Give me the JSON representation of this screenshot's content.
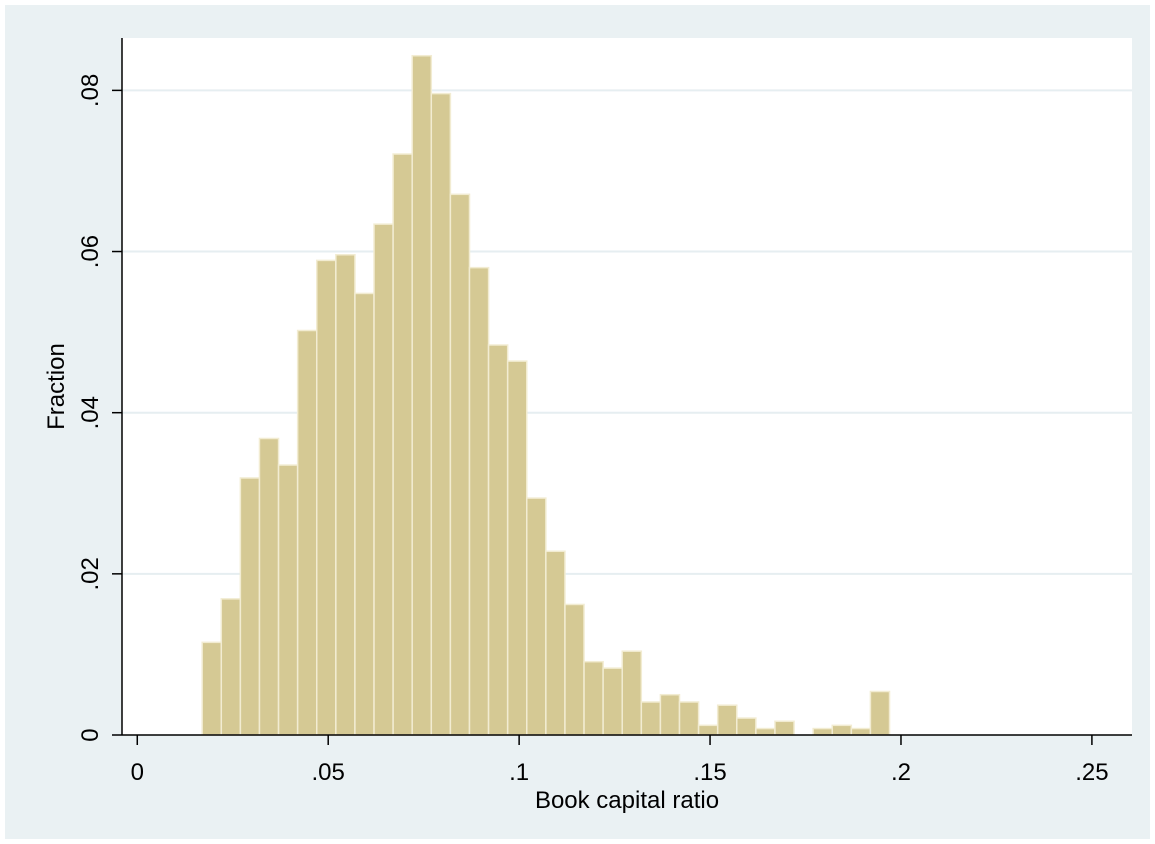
{
  "chart_data": {
    "type": "bar",
    "title": "",
    "xlabel": "Book capital ratio",
    "ylabel": "Fraction",
    "bin_width": 0.005,
    "bin_start": 0.017,
    "values": [
      0.0115,
      0.0169,
      0.0319,
      0.0368,
      0.0335,
      0.0502,
      0.0589,
      0.0596,
      0.0548,
      0.0634,
      0.0721,
      0.0843,
      0.0796,
      0.0671,
      0.058,
      0.0484,
      0.0464,
      0.0294,
      0.0228,
      0.0162,
      0.0091,
      0.0083,
      0.0104,
      0.0041,
      0.005,
      0.0041,
      0.0012,
      0.0037,
      0.0021,
      0.0008,
      0.0017,
      0.0,
      0.0008,
      0.0012,
      0.0008,
      0.0054
    ],
    "xlim": [
      -0.004,
      0.2605
    ],
    "ylim": [
      0,
      0.0865
    ],
    "xticks": [
      {
        "value": 0,
        "label": "0"
      },
      {
        "value": 0.05,
        "label": ".05"
      },
      {
        "value": 0.1,
        "label": ".1"
      },
      {
        "value": 0.15,
        "label": ".15"
      },
      {
        "value": 0.2,
        "label": ".2"
      },
      {
        "value": 0.25,
        "label": ".25"
      }
    ],
    "yticks": [
      {
        "value": 0,
        "label": "0"
      },
      {
        "value": 0.02,
        "label": ".02"
      },
      {
        "value": 0.04,
        "label": ".04"
      },
      {
        "value": 0.06,
        "label": ".06"
      },
      {
        "value": 0.08,
        "label": ".08"
      }
    ],
    "grid": true,
    "legend": "none",
    "colors": {
      "background": "#eaf1f3",
      "plot_background": "#ffffff",
      "bar_fill": "#d5c994",
      "bar_outline": "#f2ecd2",
      "gridline": "#e6eef1",
      "axis": "#000000"
    }
  }
}
